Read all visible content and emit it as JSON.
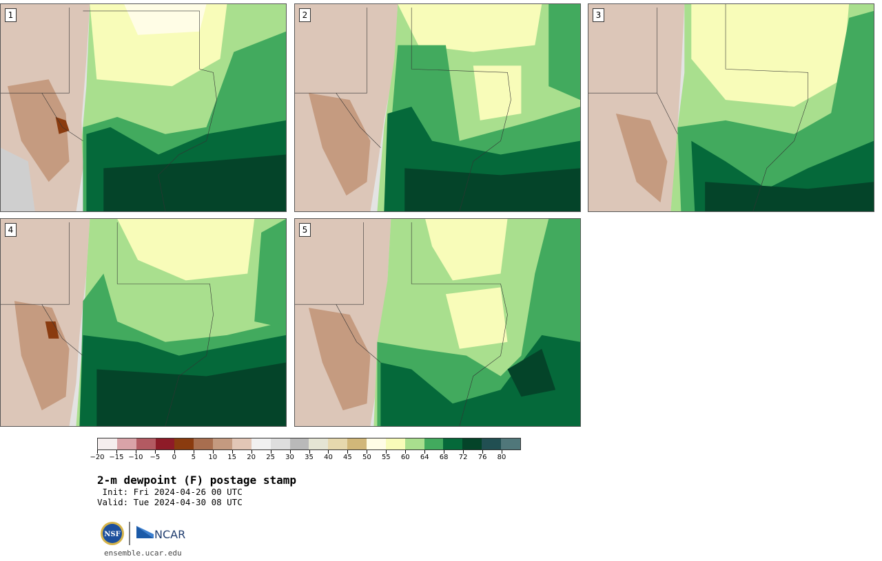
{
  "panels": [
    {
      "label": "1"
    },
    {
      "label": "2"
    },
    {
      "label": "3"
    },
    {
      "label": "4"
    },
    {
      "label": "5"
    }
  ],
  "legend": {
    "colors": [
      "#f5eeee",
      "#d9a3a8",
      "#b35a62",
      "#8e1b28",
      "#8a3b0f",
      "#a86e4f",
      "#c49a80",
      "#e2c6b6",
      "#f1f1f1",
      "#dedede",
      "#b9b9b9",
      "#e5e5d4",
      "#e6d8ad",
      "#d1b779",
      "#fffde6",
      "#f8fcb9",
      "#a9df8e",
      "#42aa5e",
      "#05693a",
      "#044429",
      "#214f52",
      "#50777a"
    ],
    "ticks": [
      "−20",
      "−15",
      "−10",
      "−5",
      "0",
      "5",
      "10",
      "15",
      "20",
      "25",
      "30",
      "35",
      "40",
      "45",
      "50",
      "55",
      "60",
      "64",
      "68",
      "72",
      "76",
      "80"
    ]
  },
  "title": "2-m dewpoint (F) postage stamp",
  "init": " Init: Fri 2024-04-26 00 UTC",
  "valid": "Valid: Tue 2024-04-30 08 UTC",
  "footer": {
    "url": "ensemble.ucar.edu",
    "nsf_logo": "NSF",
    "ncar_logo": "NCAR"
  }
}
